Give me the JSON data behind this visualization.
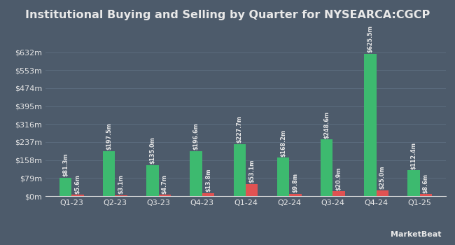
{
  "title": "Institutional Buying and Selling by Quarter for NYSEARCA:CGCP",
  "quarters": [
    "Q1-23",
    "Q2-23",
    "Q3-23",
    "Q4-23",
    "Q1-24",
    "Q2-24",
    "Q3-24",
    "Q4-24",
    "Q1-25"
  ],
  "inflows": [
    81.3,
    197.5,
    135.0,
    196.6,
    227.7,
    168.2,
    248.6,
    625.5,
    112.4
  ],
  "outflows": [
    5.6,
    3.1,
    4.7,
    13.8,
    53.1,
    9.8,
    20.9,
    25.0,
    8.6
  ],
  "inflow_labels": [
    "$81.3m",
    "$197.5m",
    "$135.0m",
    "$196.6m",
    "$227.7m",
    "$168.2m",
    "$248.6m",
    "$625.5m",
    "$112.4m"
  ],
  "outflow_labels": [
    "$5.6m",
    "$3.1m",
    "$4.7m",
    "$13.8m",
    "$53.1m",
    "$9.8m",
    "$20.9m",
    "$25.0m",
    "$8.6m"
  ],
  "inflow_color": "#3dba6f",
  "outflow_color": "#e05252",
  "background_color": "#4d5b6b",
  "grid_color": "#5d6e80",
  "text_color": "#e8e8e8",
  "yticks": [
    0,
    79,
    158,
    237,
    316,
    395,
    474,
    553,
    632
  ],
  "ytick_labels": [
    "$0m",
    "$79m",
    "$158m",
    "$237m",
    "$316m",
    "$395m",
    "$474m",
    "$553m",
    "$632m"
  ],
  "ylim": [
    0,
    700
  ],
  "bar_width": 0.28,
  "title_fontsize": 11.5,
  "tick_fontsize": 8,
  "label_fontsize": 5.8,
  "legend_fontsize": 8,
  "marketbeat_text": "MarketBeat"
}
